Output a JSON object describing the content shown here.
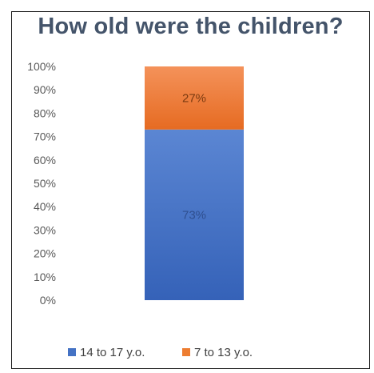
{
  "chart_data": {
    "type": "bar",
    "stacked": true,
    "title": "How old were the children?",
    "categories": [
      ""
    ],
    "series": [
      {
        "name": "14 to 17 y.o.",
        "values": [
          73
        ],
        "label": "73%",
        "color": "#4472c4"
      },
      {
        "name": "7 to 13 y.o.",
        "values": [
          27
        ],
        "label": "27%",
        "color": "#ed7d31"
      }
    ],
    "ylim": [
      0,
      100
    ],
    "yticks": [
      "0%",
      "10%",
      "20%",
      "30%",
      "40%",
      "50%",
      "60%",
      "70%",
      "80%",
      "90%",
      "100%"
    ],
    "grid": false,
    "legend": "bottom"
  }
}
